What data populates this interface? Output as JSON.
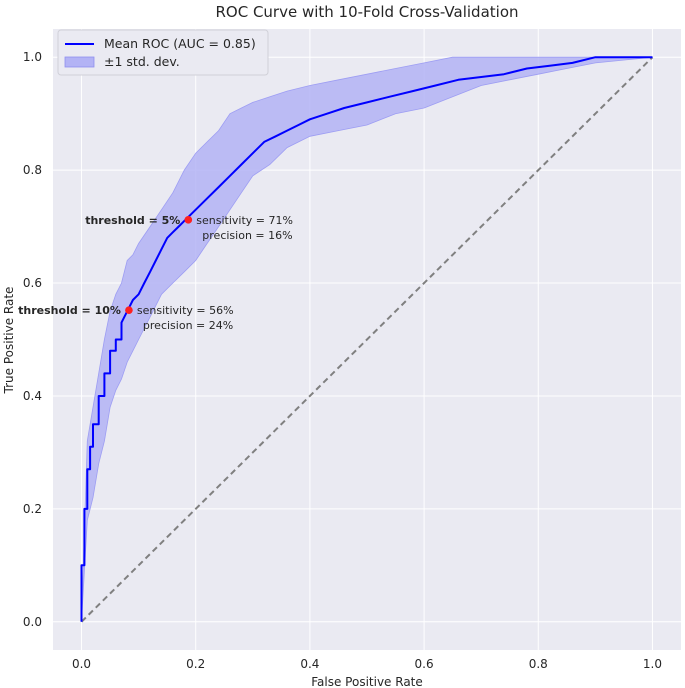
{
  "chart_data": {
    "type": "line",
    "title": "ROC Curve with 10-Fold Cross-Validation",
    "xlabel": "False Positive Rate",
    "ylabel": "True Positive Rate",
    "xlim": [
      -0.05,
      1.05
    ],
    "ylim": [
      -0.05,
      1.05
    ],
    "xticks": [
      0.0,
      0.2,
      0.4,
      0.6,
      0.8,
      1.0
    ],
    "yticks": [
      0.0,
      0.2,
      0.4,
      0.6,
      0.8,
      1.0
    ],
    "xtick_labels": [
      "0.0",
      "0.2",
      "0.4",
      "0.6",
      "0.8",
      "1.0"
    ],
    "ytick_labels": [
      "0.0",
      "0.2",
      "0.4",
      "0.6",
      "0.8",
      "1.0"
    ],
    "grid": true,
    "legend_position": "top-left",
    "legend": [
      {
        "label": "Mean ROC (AUC = 0.85)",
        "kind": "line",
        "color": "#0000ff"
      },
      {
        "label": "±1 std. dev.",
        "kind": "patch",
        "color": "#b3b3f5"
      }
    ],
    "series": [
      {
        "name": "Mean ROC (AUC = 0.85)",
        "color": "#0000ff",
        "x": [
          0.0,
          0.0,
          0.005,
          0.005,
          0.01,
          0.01,
          0.015,
          0.015,
          0.02,
          0.02,
          0.03,
          0.03,
          0.04,
          0.04,
          0.05,
          0.05,
          0.06,
          0.06,
          0.07,
          0.07,
          0.08,
          0.09,
          0.1,
          0.11,
          0.12,
          0.13,
          0.14,
          0.15,
          0.16,
          0.17,
          0.18,
          0.19,
          0.2,
          0.22,
          0.24,
          0.26,
          0.28,
          0.3,
          0.32,
          0.34,
          0.36,
          0.38,
          0.4,
          0.43,
          0.46,
          0.5,
          0.54,
          0.58,
          0.62,
          0.66,
          0.7,
          0.74,
          0.78,
          0.82,
          0.86,
          0.9,
          1.0
        ],
        "y": [
          0.0,
          0.1,
          0.1,
          0.2,
          0.2,
          0.27,
          0.27,
          0.31,
          0.31,
          0.35,
          0.35,
          0.4,
          0.4,
          0.44,
          0.44,
          0.48,
          0.48,
          0.5,
          0.5,
          0.53,
          0.55,
          0.57,
          0.58,
          0.6,
          0.62,
          0.64,
          0.66,
          0.68,
          0.69,
          0.7,
          0.71,
          0.72,
          0.73,
          0.75,
          0.77,
          0.79,
          0.81,
          0.83,
          0.85,
          0.86,
          0.87,
          0.88,
          0.89,
          0.9,
          0.91,
          0.92,
          0.93,
          0.94,
          0.95,
          0.96,
          0.965,
          0.97,
          0.98,
          0.985,
          0.99,
          1.0,
          1.0
        ]
      },
      {
        "name": "±1 std. dev.",
        "kind": "band",
        "color": "#b3b3f5",
        "x": [
          0.0,
          0.01,
          0.02,
          0.03,
          0.04,
          0.05,
          0.06,
          0.07,
          0.08,
          0.09,
          0.1,
          0.12,
          0.14,
          0.16,
          0.18,
          0.2,
          0.22,
          0.24,
          0.26,
          0.28,
          0.3,
          0.33,
          0.36,
          0.4,
          0.45,
          0.5,
          0.55,
          0.6,
          0.65,
          0.7,
          0.75,
          0.8,
          0.85,
          0.9,
          1.0
        ],
        "lower": [
          0.0,
          0.18,
          0.22,
          0.28,
          0.32,
          0.38,
          0.41,
          0.43,
          0.46,
          0.48,
          0.5,
          0.54,
          0.58,
          0.6,
          0.62,
          0.64,
          0.67,
          0.7,
          0.73,
          0.76,
          0.79,
          0.81,
          0.84,
          0.86,
          0.87,
          0.88,
          0.9,
          0.91,
          0.93,
          0.95,
          0.96,
          0.97,
          0.98,
          0.99,
          1.0
        ],
        "upper": [
          0.0,
          0.32,
          0.38,
          0.44,
          0.5,
          0.55,
          0.58,
          0.6,
          0.64,
          0.65,
          0.67,
          0.7,
          0.73,
          0.76,
          0.8,
          0.83,
          0.85,
          0.87,
          0.9,
          0.91,
          0.92,
          0.93,
          0.94,
          0.95,
          0.96,
          0.97,
          0.98,
          0.99,
          1.0,
          1.0,
          1.0,
          1.0,
          1.0,
          1.0,
          1.0
        ]
      },
      {
        "name": "",
        "kind": "chance",
        "color": "#808080",
        "x": [
          0.0,
          1.0
        ],
        "y": [
          0.0,
          1.0
        ]
      }
    ],
    "annotations": [
      {
        "x": 0.187,
        "y": 0.712,
        "threshold_label": "threshold = 5%",
        "line1": "sensitivity = 71%",
        "line2": "precision = 16%"
      },
      {
        "x": 0.083,
        "y": 0.552,
        "threshold_label": "threshold = 10%",
        "line1": "sensitivity = 56%",
        "line2": "precision = 24%"
      }
    ]
  }
}
